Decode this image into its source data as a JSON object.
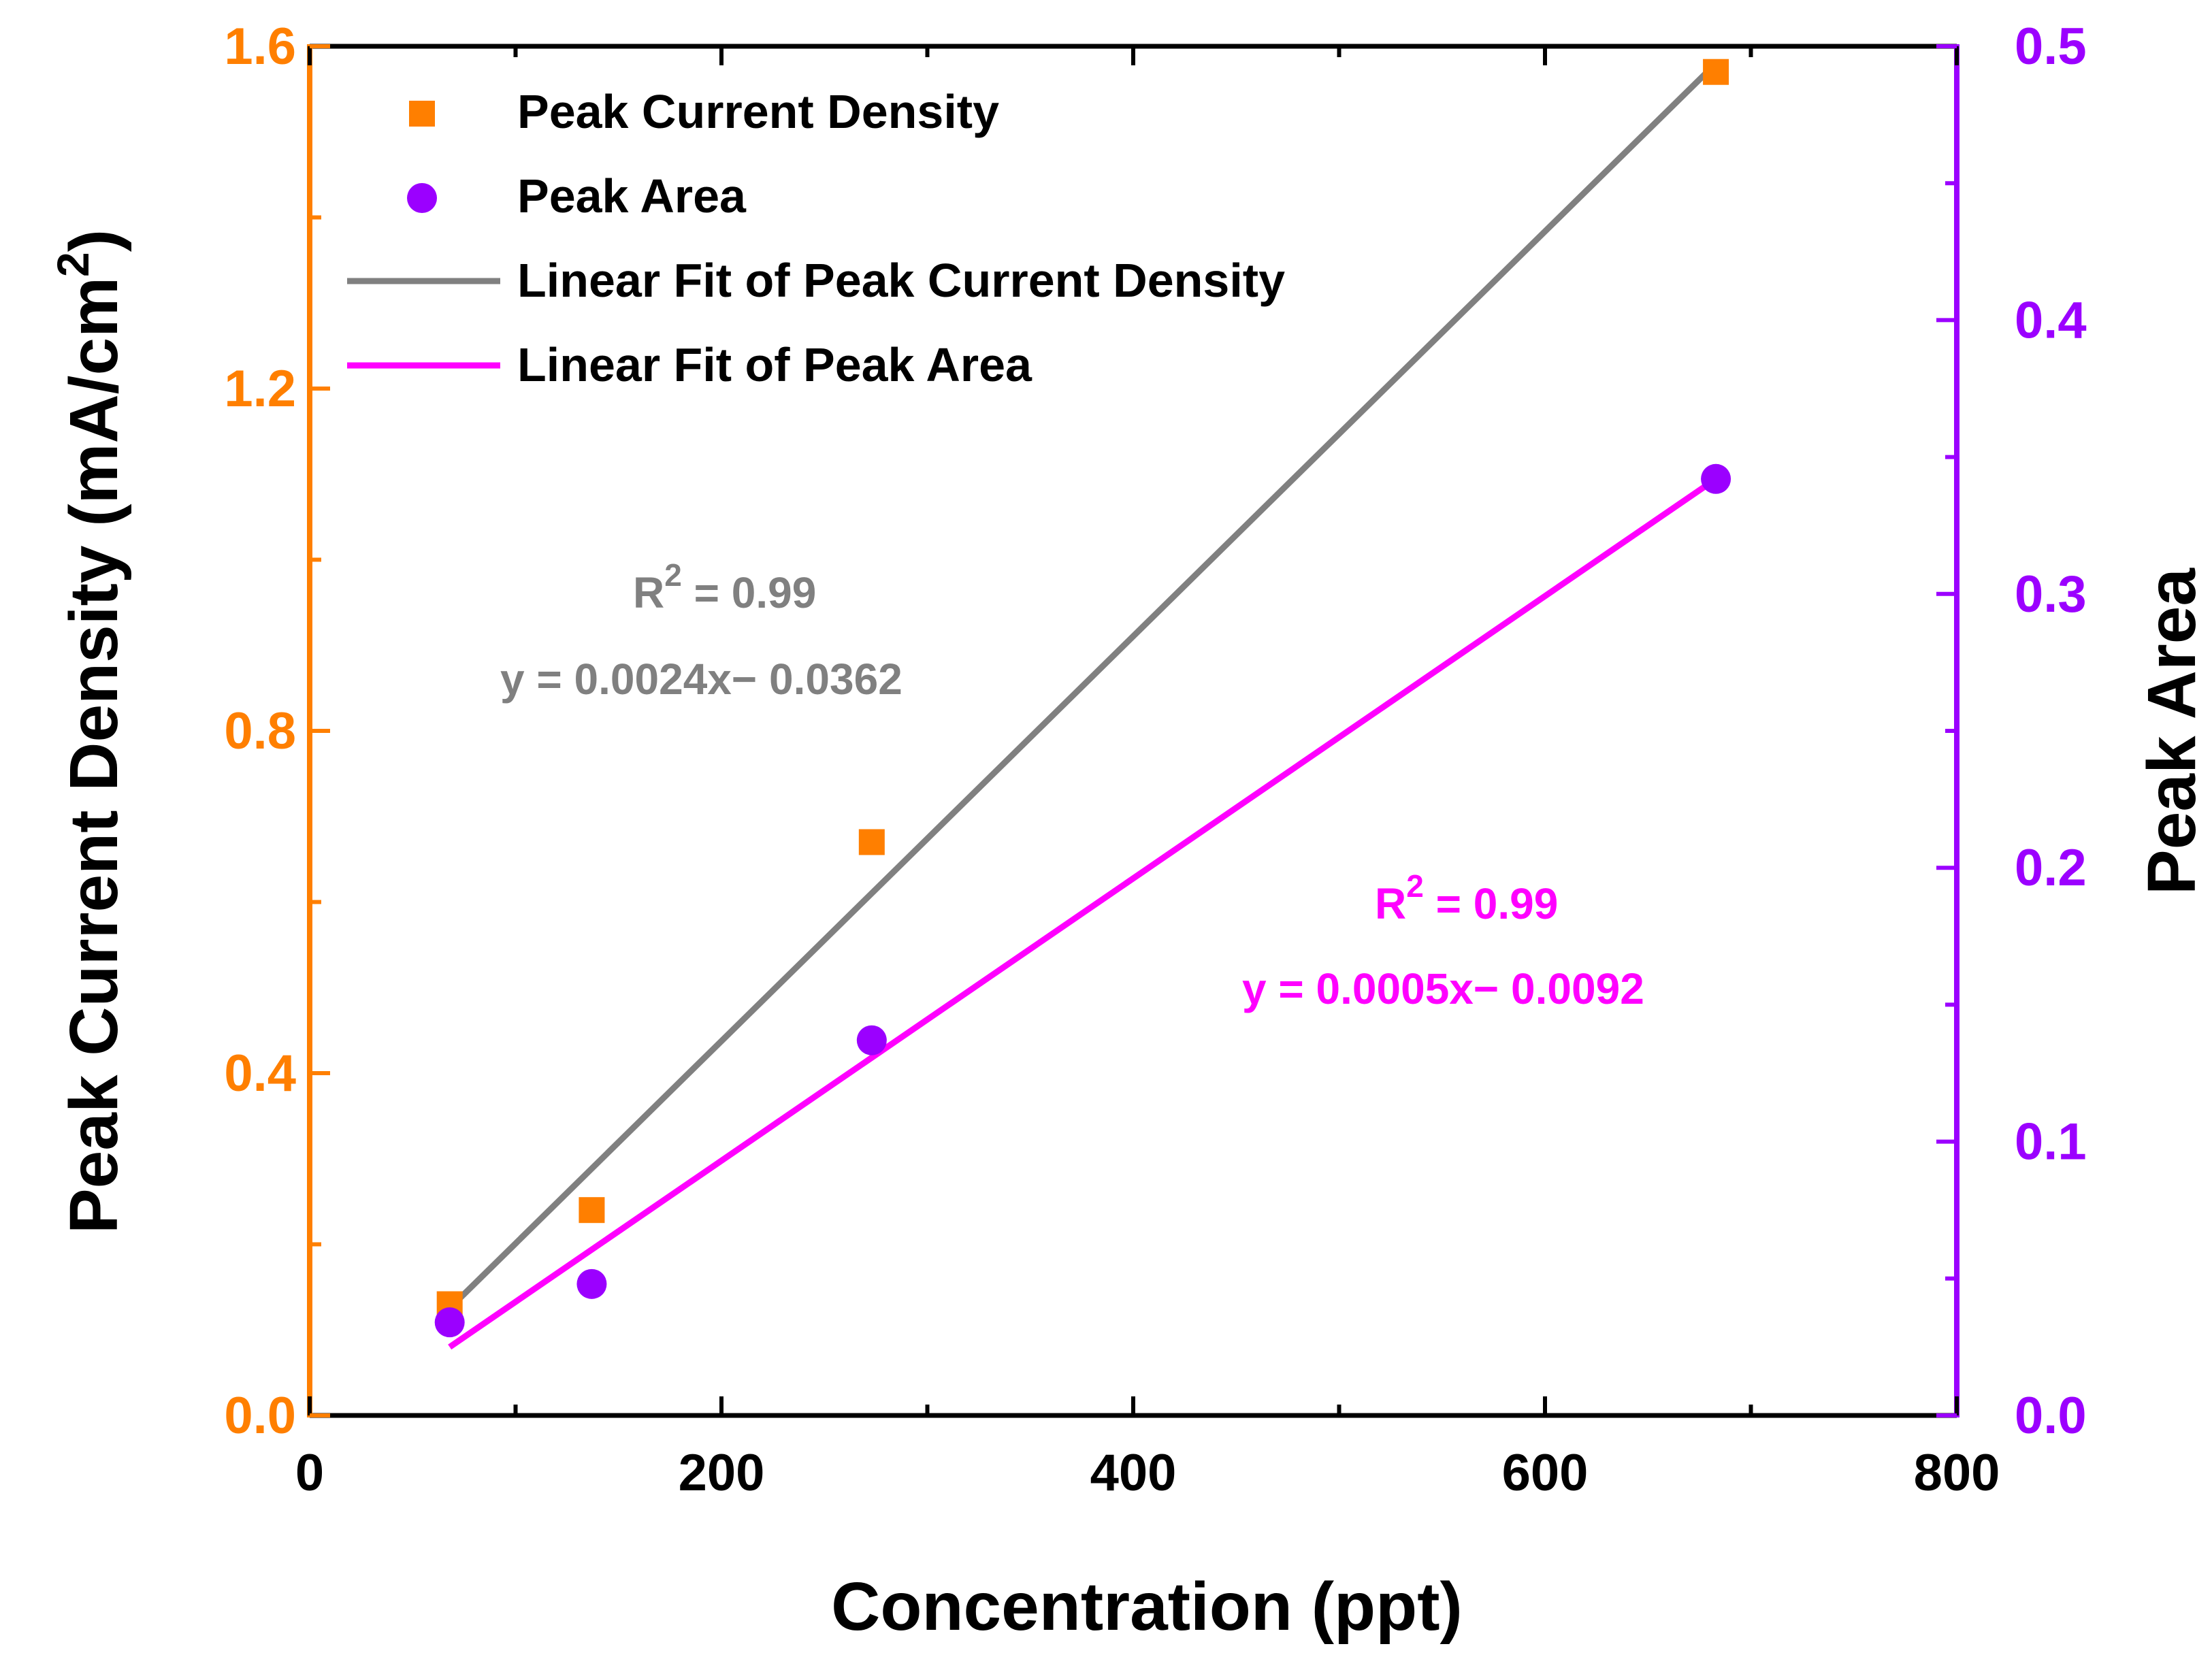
{
  "chart_data": {
    "type": "scatter",
    "x": [
      68,
      137,
      273,
      683
    ],
    "xlabel": "Concentration (ppt)",
    "xlim": [
      0,
      800
    ],
    "xticks": [
      0,
      200,
      400,
      600,
      800
    ],
    "xtick_labels": [
      "0",
      "200",
      "400",
      "600",
      "800"
    ],
    "y_left": {
      "label_prefix": "Peak Current Density (mA/cm",
      "label_sup": "2",
      "label_suffix": ")",
      "lim": [
        0.0,
        1.6
      ],
      "ticks": [
        0.0,
        0.4,
        0.8,
        1.2,
        1.6
      ],
      "tick_labels": [
        "0.0",
        "0.4",
        "0.8",
        "1.2",
        "1.6"
      ],
      "color": "#ff7f00"
    },
    "y_right": {
      "label": "Peak Area",
      "lim": [
        0.0,
        0.5
      ],
      "ticks": [
        0.0,
        0.1,
        0.2,
        0.3,
        0.4,
        0.5
      ],
      "tick_labels": [
        "0.0",
        "0.1",
        "0.2",
        "0.3",
        "0.4",
        "0.5"
      ],
      "color": "#9b00ff"
    },
    "series": [
      {
        "name": "Peak Current Density",
        "axis": "left",
        "marker": "square",
        "color": "#ff7f00",
        "values": [
          0.13,
          0.24,
          0.67,
          1.57
        ]
      },
      {
        "name": "Peak Area",
        "axis": "right",
        "marker": "circle",
        "color": "#9b00ff",
        "values": [
          0.034,
          0.048,
          0.137,
          0.342
        ]
      }
    ],
    "fits": [
      {
        "name": "Linear Fit of Peak Current Density",
        "axis": "left",
        "color": "#808080",
        "x_range": [
          70,
          683
        ],
        "y_range": [
          0.13,
          1.58
        ],
        "r2_prefix": "R",
        "r2_sup": "2",
        "r2_suffix": " = 0.99",
        "equation": "y = 0.0024x− 0.0362"
      },
      {
        "name": "Linear Fit of Peak Area",
        "axis": "right",
        "color": "#ff00ff",
        "x_range": [
          68,
          683
        ],
        "y_range": [
          0.025,
          0.342
        ],
        "r2_prefix": "R",
        "r2_sup": "2",
        "r2_suffix": " = 0.99",
        "equation": "y = 0.0005x− 0.0092"
      }
    ],
    "legend_position": "top-left"
  }
}
